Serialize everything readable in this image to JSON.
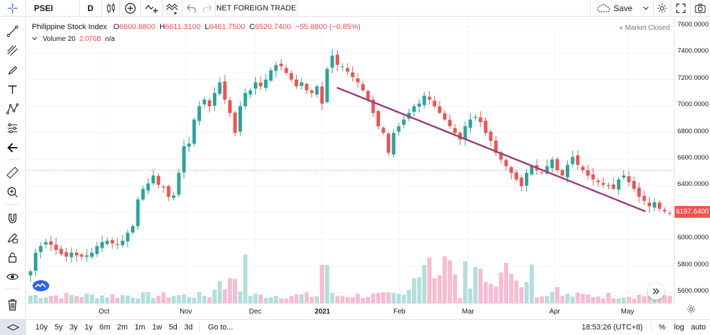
{
  "toolbar": {
    "symbol": "PSEI",
    "interval": "D",
    "indicator_name": "NET FOREIGN TRADE",
    "save_label": "Save"
  },
  "legend": {
    "title": "Philippine Stock Index",
    "o_label": "O",
    "o_value": "6600.8800",
    "h_label": "H",
    "h_value": "6611.3100",
    "l_label": "L",
    "l_value": "6461.7500",
    "c_label": "C",
    "c_value": "6520.7400",
    "change": "−55.8800 (−0.85%)",
    "volume_label": "Volume 20",
    "volume_value": "2.076B",
    "volume_na": "n/a",
    "market_status": "Market Closed"
  },
  "price_axis": [
    "7600.0000",
    "7400.0000",
    "7200.0000",
    "7000.0000",
    "6800.0000",
    "6600.0000",
    "6400.0000",
    "6200.0000",
    "6000.0000",
    "5800.0000",
    "5600.0000"
  ],
  "last_price": "6197.6400",
  "time_axis": [
    "Oct",
    "Nov",
    "Dec",
    "2021",
    "Feb",
    "Mar",
    "Apr",
    "May"
  ],
  "bottom": {
    "ranges": [
      "10y",
      "5y",
      "3y",
      "1y",
      "6m",
      "2m",
      "1m",
      "1w",
      "5d",
      "3d"
    ],
    "goto": "Go to...",
    "clock": "18:53:26 (UTC+8)",
    "percent": "%",
    "log": "log",
    "auto": "auto"
  },
  "colors": {
    "up": "#26a69a",
    "down": "#ef5350",
    "trendline": "#9c3f7a",
    "vol_up": "#b2dfdb",
    "vol_down": "#f8bbd0"
  },
  "chart_data": {
    "type": "candlestick",
    "symbol": "PSEI",
    "interval": "D",
    "ylim": [
      5550,
      7650
    ],
    "x_categories": [
      "Oct",
      "Nov",
      "Dec",
      "2021",
      "Feb",
      "Mar",
      "Apr",
      "May"
    ],
    "closes_approx": [
      5760,
      5900,
      5950,
      5980,
      5960,
      5920,
      5890,
      5870,
      5900,
      5880,
      5870,
      5880,
      5900,
      5950,
      5980,
      5990,
      5970,
      5960,
      5990,
      6050,
      6100,
      6300,
      6380,
      6420,
      6480,
      6410,
      6390,
      6320,
      6330,
      6500,
      6700,
      6720,
      6900,
      7000,
      7050,
      7000,
      7100,
      7180,
      7050,
      6950,
      6800,
      7000,
      7100,
      7120,
      7180,
      7150,
      7200,
      7270,
      7310,
      7300,
      7250,
      7200,
      7150,
      7180,
      7120,
      7100,
      7150,
      7020,
      7280,
      7380,
      7310,
      7300,
      7260,
      7220,
      7180,
      7120,
      7050,
      6950,
      6850,
      6800,
      6650,
      6800,
      6850,
      6900,
      6950,
      7000,
      7020,
      7080,
      7050,
      7000,
      6950,
      6900,
      6850,
      6800,
      6750,
      6850,
      6900,
      6920,
      6880,
      6800,
      6740,
      6650,
      6600,
      6550,
      6500,
      6450,
      6400,
      6500,
      6550,
      6520,
      6500,
      6550,
      6600,
      6520,
      6480,
      6560,
      6620,
      6560,
      6520,
      6480,
      6450,
      6430,
      6410,
      6400,
      6380,
      6450,
      6480,
      6430,
      6380,
      6320,
      6290,
      6250,
      6280,
      6230,
      6210,
      6197.64
    ],
    "trendline": {
      "start": {
        "x": "2021-01-04",
        "y": 7140
      },
      "end": {
        "x": "2021-05-17",
        "y": 6210
      }
    },
    "reference_line": 6520.74,
    "last_price": 6197.64
  }
}
